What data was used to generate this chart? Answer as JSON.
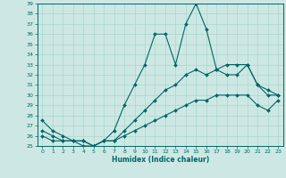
{
  "xlabel": "Humidex (Indice chaleur)",
  "ylabel": "",
  "bg_color": "#cde8e4",
  "line_color": "#006666",
  "grid_color": "#b0d8d2",
  "ylim": [
    25,
    39
  ],
  "xlim": [
    -0.5,
    23.5
  ],
  "yticks": [
    25,
    26,
    27,
    28,
    29,
    30,
    31,
    32,
    33,
    34,
    35,
    36,
    37,
    38,
    39
  ],
  "xticks": [
    0,
    1,
    2,
    3,
    4,
    5,
    6,
    7,
    8,
    9,
    10,
    11,
    12,
    13,
    14,
    15,
    16,
    17,
    18,
    19,
    20,
    21,
    22,
    23
  ],
  "line1_x": [
    0,
    1,
    2,
    3,
    4,
    5,
    6,
    7,
    8,
    9,
    10,
    11,
    12,
    13,
    14,
    15,
    16,
    17,
    18,
    19,
    20,
    21,
    22,
    23
  ],
  "line1_y": [
    27.5,
    26.5,
    26.0,
    25.5,
    25.5,
    25.0,
    25.5,
    26.5,
    29.0,
    31.0,
    33.0,
    36.0,
    36.0,
    33.0,
    37.0,
    39.0,
    36.5,
    32.5,
    33.0,
    33.0,
    33.0,
    31.0,
    30.0,
    30.0
  ],
  "line2_x": [
    0,
    1,
    2,
    3,
    4,
    5,
    6,
    7,
    8,
    9,
    10,
    11,
    12,
    13,
    14,
    15,
    16,
    17,
    18,
    19,
    20,
    21,
    22,
    23
  ],
  "line2_y": [
    26.5,
    26.0,
    25.5,
    25.5,
    25.5,
    25.0,
    25.5,
    25.5,
    26.5,
    27.5,
    28.5,
    29.5,
    30.5,
    31.0,
    32.0,
    32.5,
    32.0,
    32.5,
    32.0,
    32.0,
    33.0,
    31.0,
    30.5,
    30.0
  ],
  "line3_x": [
    0,
    1,
    2,
    3,
    4,
    5,
    6,
    7,
    8,
    9,
    10,
    11,
    12,
    13,
    14,
    15,
    16,
    17,
    18,
    19,
    20,
    21,
    22,
    23
  ],
  "line3_y": [
    26.0,
    25.5,
    25.5,
    25.5,
    25.0,
    25.0,
    25.5,
    25.5,
    26.0,
    26.5,
    27.0,
    27.5,
    28.0,
    28.5,
    29.0,
    29.5,
    29.5,
    30.0,
    30.0,
    30.0,
    30.0,
    29.0,
    28.5,
    29.5
  ]
}
